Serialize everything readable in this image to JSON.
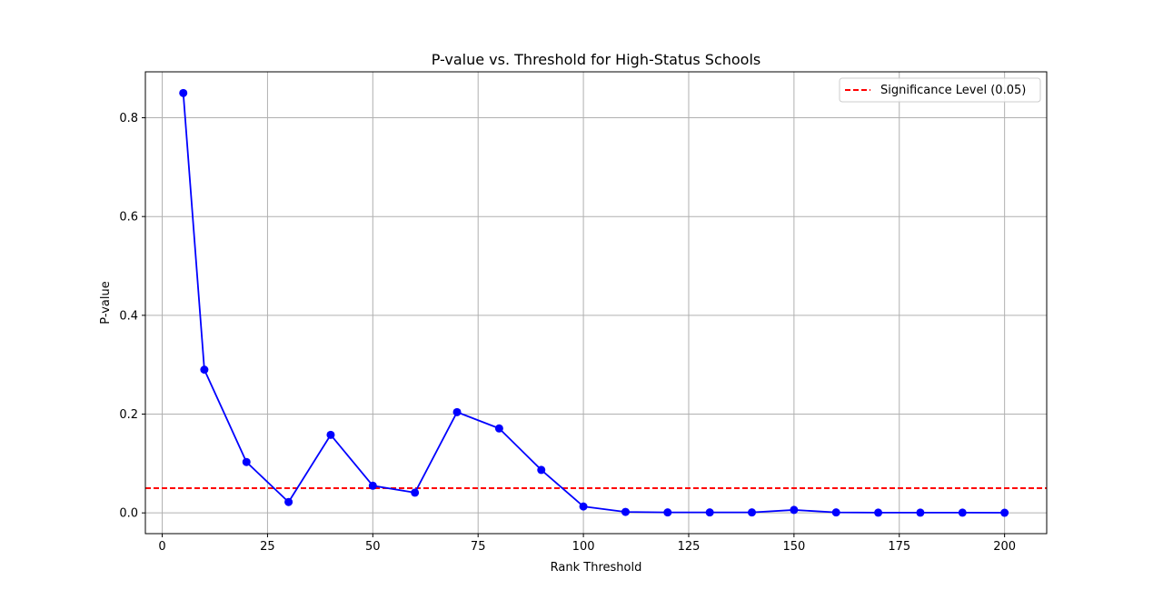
{
  "chart_data": {
    "type": "line",
    "title": "P-value vs. Threshold for High-Status Schools",
    "xlabel": "Rank Threshold",
    "ylabel": "P-value",
    "xlim": [
      -4,
      210
    ],
    "ylim": [
      -0.042,
      0.893
    ],
    "xticks": [
      0,
      25,
      50,
      75,
      100,
      125,
      150,
      175,
      200
    ],
    "yticks": [
      0.0,
      0.2,
      0.4,
      0.6,
      0.8
    ],
    "xtick_labels": [
      "0",
      "25",
      "50",
      "75",
      "100",
      "125",
      "150",
      "175",
      "200"
    ],
    "ytick_labels": [
      "0.0",
      "0.2",
      "0.4",
      "0.6",
      "0.8"
    ],
    "grid": true,
    "legend_placement": "top-right",
    "series": [
      {
        "x": [
          5,
          10,
          20,
          30,
          40,
          50,
          60,
          70,
          80,
          90,
          100,
          110,
          120,
          130,
          140,
          150,
          160,
          170,
          180,
          190,
          200
        ],
        "values": [
          0.85,
          0.29,
          0.103,
          0.022,
          0.158,
          0.055,
          0.041,
          0.204,
          0.171,
          0.087,
          0.013,
          0.002,
          0.001,
          0.001,
          0.001,
          0.006,
          0.001,
          0.0005,
          0.0005,
          0.0005,
          0.0003
        ],
        "color": "#0000ff",
        "marker": "circle"
      }
    ],
    "reference_lines": [
      {
        "name": "Significance Level (0.05)",
        "y": 0.05,
        "color": "#ff0000",
        "style": "dashed"
      }
    ]
  }
}
